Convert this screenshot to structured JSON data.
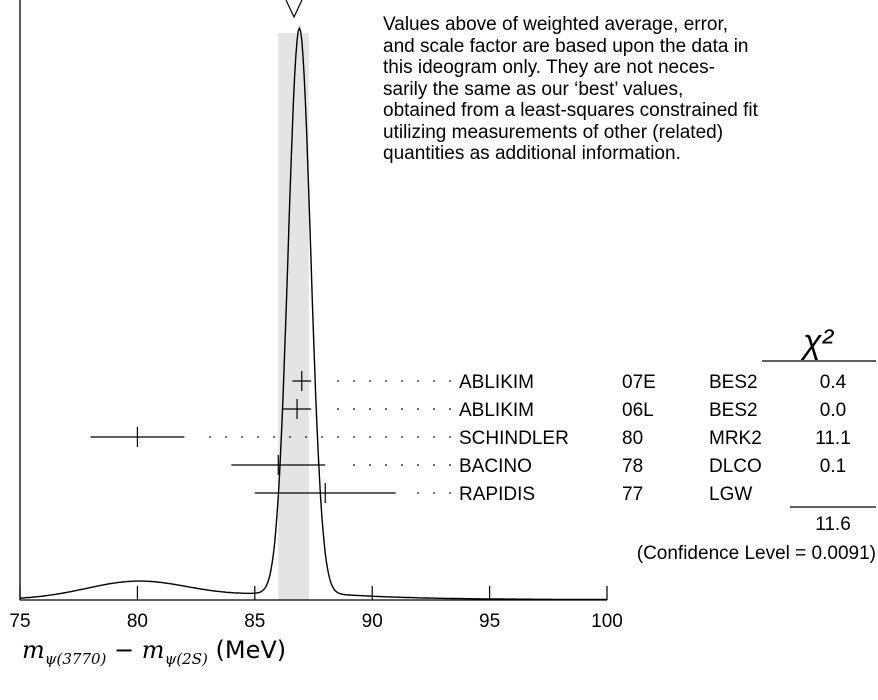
{
  "note": {
    "lines": [
      "Values above of weighted average, error,",
      "and scale factor are based upon the data in",
      "this ideogram only.  They are not neces-",
      "sarily the same as our ‘best’ values,",
      "obtained from a least-squares constrained fit",
      "utilizing measurements of other (related)",
      "quantities as additional information."
    ]
  },
  "axis_label": {
    "m1": "m",
    "sub1": "ψ(3770)",
    "minus": "−",
    "m2": "m",
    "sub2": "ψ(2S)",
    "unit": "(MeV)"
  },
  "colors": {
    "band": "#e4e4e4",
    "ink": "#000000"
  },
  "chart_data": {
    "type": "ideogram",
    "xlim": [
      75,
      100
    ],
    "x_ticks": [
      75,
      80,
      85,
      90,
      95,
      100
    ],
    "tick_labels": [
      "75",
      "80",
      "85",
      "90",
      "95",
      "100"
    ],
    "weighted_average_band": [
      86.0,
      87.3
    ],
    "chi2_header": "χ²",
    "measurements": [
      {
        "author": "ABLIKIM",
        "year": "07E",
        "experiment": "BES2",
        "value": 87.0,
        "error_low": 0.4,
        "error_high": 0.4,
        "chi2": "0.4"
      },
      {
        "author": "ABLIKIM",
        "year": "06L",
        "experiment": "BES2",
        "value": 86.8,
        "error_low": 0.6,
        "error_high": 0.6,
        "chi2": "0.0"
      },
      {
        "author": "SCHINDLER",
        "year": "80",
        "experiment": "MRK2",
        "value": 80.0,
        "error_low": 2.0,
        "error_high": 2.0,
        "chi2": "11.1"
      },
      {
        "author": "BACINO",
        "year": "78",
        "experiment": "DLCO",
        "value": 86.0,
        "error_low": 2.0,
        "error_high": 2.0,
        "chi2": "0.1"
      },
      {
        "author": "RAPIDIS",
        "year": "77",
        "experiment": "LGW",
        "value": 88.0,
        "error_low": 3.0,
        "error_high": 3.0,
        "chi2": ""
      }
    ],
    "chi2_total": "11.6",
    "confidence_level": "(Confidence Level = 0.0091)",
    "ideogram_curve": {
      "peak_position": 86.9,
      "peak_width": 0.48,
      "secondary_bump_position": 80.0,
      "secondary_bump_width": 2.2,
      "secondary_bump_ratio": 0.031
    }
  }
}
